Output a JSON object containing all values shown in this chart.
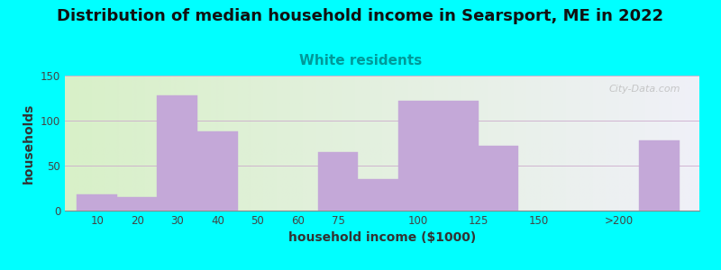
{
  "title": "Distribution of median household income in Searsport, ME in 2022",
  "subtitle": "White residents",
  "xlabel": "household income ($1000)",
  "ylabel": "households",
  "background_color": "#00FFFF",
  "bar_color": "#C4A8D8",
  "bar_edge_color": "#C4A8D8",
  "ylim": [
    0,
    150
  ],
  "yticks": [
    0,
    50,
    100,
    150
  ],
  "title_fontsize": 13,
  "subtitle_fontsize": 11,
  "subtitle_color": "#009999",
  "axis_label_fontsize": 10,
  "watermark": "City-Data.com",
  "bin_lefts": [
    0,
    1,
    2,
    3,
    5,
    6,
    7,
    8,
    9,
    10,
    12,
    14
  ],
  "bin_widths": [
    1,
    1,
    1,
    1,
    1,
    1,
    1,
    1,
    1,
    1,
    1,
    1
  ],
  "heights": [
    18,
    15,
    128,
    88,
    0,
    65,
    35,
    122,
    122,
    72,
    0,
    78
  ],
  "xtick_positions": [
    0.5,
    1.5,
    2.5,
    3.5,
    4.5,
    5.5,
    6.5,
    8.5,
    10.0,
    11.5,
    13.5
  ],
  "xtick_labels": [
    "10",
    "20",
    "30",
    "40",
    "50",
    "60",
    "75",
    "100",
    "125",
    "150",
    ">200"
  ],
  "grad_left": "#d8f0c8",
  "grad_right": "#f0f0f8"
}
